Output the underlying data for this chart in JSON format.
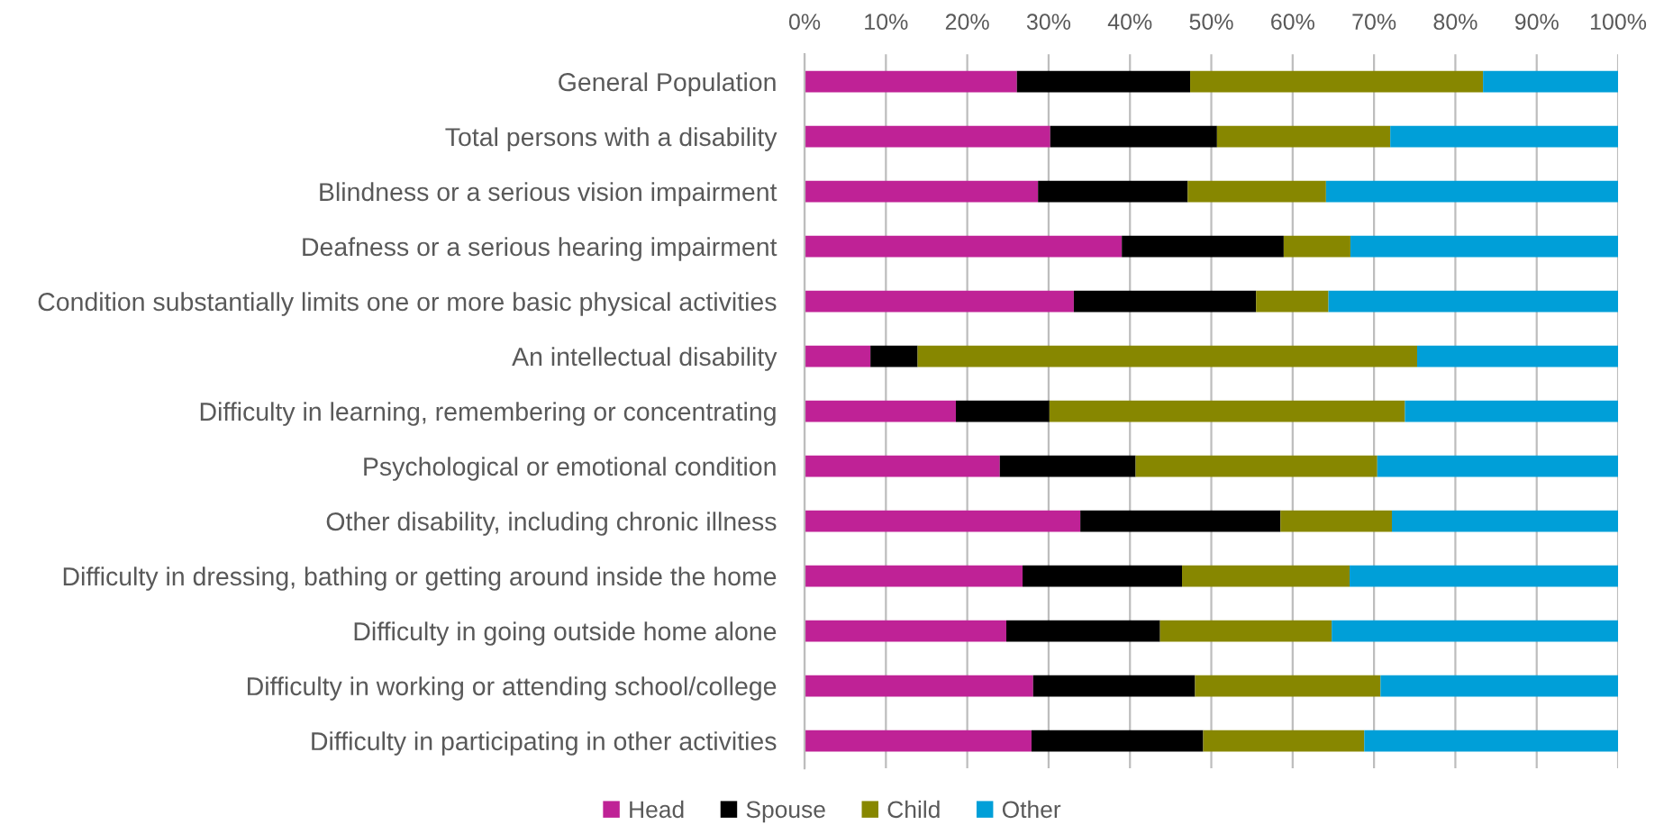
{
  "chart_data": {
    "type": "bar",
    "orientation": "horizontal",
    "stacked": true,
    "categories": [
      "General Population",
      "Total persons with a disability",
      "Blindness or a serious vision impairment",
      "Deafness or a serious hearing impairment",
      "Condition substantially limits one or more basic physical activities",
      "An intellectual disability",
      "Difficulty in learning, remembering or concentrating",
      "Psychological or emotional condition",
      "Other disability, including chronic illness",
      "Difficulty in dressing, bathing or getting around inside the home",
      "Difficulty in going outside home alone",
      "Difficulty in working or attending school/college",
      "Difficulty in participating in other activities"
    ],
    "series": [
      {
        "name": "Head",
        "color": "#bf2296",
        "values": [
          26.1,
          30.2,
          28.7,
          39.0,
          33.1,
          8.1,
          18.6,
          24.0,
          33.9,
          26.8,
          24.8,
          28.1,
          27.9
        ]
      },
      {
        "name": "Spouse",
        "color": "#000000",
        "values": [
          21.3,
          20.5,
          18.4,
          19.9,
          22.4,
          5.8,
          11.5,
          16.7,
          24.6,
          19.6,
          18.9,
          19.9,
          21.1
        ]
      },
      {
        "name": "Child",
        "color": "#878700",
        "values": [
          36.0,
          21.3,
          17.0,
          8.2,
          8.9,
          61.4,
          43.7,
          29.7,
          13.7,
          20.6,
          21.1,
          22.8,
          19.8
        ]
      },
      {
        "name": "Other",
        "color": "#009fd8",
        "values": [
          16.6,
          28.0,
          35.9,
          32.9,
          35.6,
          24.7,
          26.2,
          29.6,
          27.8,
          33.0,
          35.2,
          29.2,
          31.2
        ]
      }
    ],
    "xlim": [
      0,
      100
    ],
    "xticks": [
      {
        "value": 0,
        "label": "0%"
      },
      {
        "value": 10,
        "label": "10%"
      },
      {
        "value": 20,
        "label": "20%"
      },
      {
        "value": 30,
        "label": "30%"
      },
      {
        "value": 40,
        "label": "40%"
      },
      {
        "value": 50,
        "label": "50%"
      },
      {
        "value": 60,
        "label": "60%"
      },
      {
        "value": 70,
        "label": "70%"
      },
      {
        "value": 80,
        "label": "80%"
      },
      {
        "value": 90,
        "label": "90%"
      },
      {
        "value": 100,
        "label": "100%"
      }
    ],
    "grid": "x",
    "legend": "bottom"
  }
}
